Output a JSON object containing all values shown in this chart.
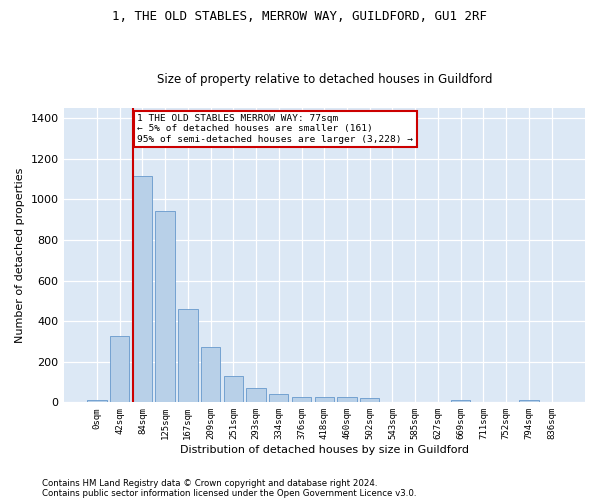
{
  "title1": "1, THE OLD STABLES, MERROW WAY, GUILDFORD, GU1 2RF",
  "title2": "Size of property relative to detached houses in Guildford",
  "xlabel": "Distribution of detached houses by size in Guildford",
  "ylabel": "Number of detached properties",
  "footnote1": "Contains HM Land Registry data © Crown copyright and database right 2024.",
  "footnote2": "Contains public sector information licensed under the Open Government Licence v3.0.",
  "annotation_line1": "1 THE OLD STABLES MERROW WAY: 77sqm",
  "annotation_line2": "← 5% of detached houses are smaller (161)",
  "annotation_line3": "95% of semi-detached houses are larger (3,228) →",
  "bar_labels": [
    "0sqm",
    "42sqm",
    "84sqm",
    "125sqm",
    "167sqm",
    "209sqm",
    "251sqm",
    "293sqm",
    "334sqm",
    "376sqm",
    "418sqm",
    "460sqm",
    "502sqm",
    "543sqm",
    "585sqm",
    "627sqm",
    "669sqm",
    "711sqm",
    "752sqm",
    "794sqm",
    "836sqm"
  ],
  "bar_values": [
    10,
    325,
    1115,
    945,
    460,
    275,
    130,
    70,
    42,
    25,
    27,
    27,
    20,
    0,
    0,
    0,
    10,
    0,
    0,
    12,
    0
  ],
  "bar_color": "#b8d0e8",
  "bar_edge_color": "#6699cc",
  "vline_color": "#cc0000",
  "annotation_box_color": "#cc0000",
  "background_color": "#dce8f5",
  "ylim": [
    0,
    1450
  ],
  "yticks": [
    0,
    200,
    400,
    600,
    800,
    1000,
    1200,
    1400
  ]
}
